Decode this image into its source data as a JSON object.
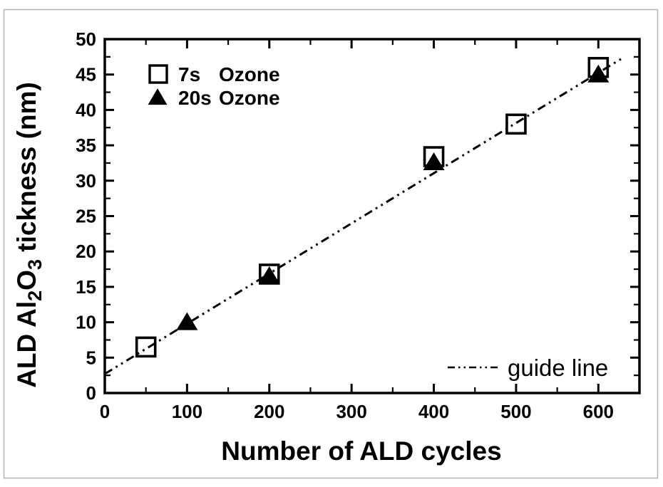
{
  "figure": {
    "background": "#ffffff",
    "border_color": "#b5b5b5",
    "ink_color": "#000000"
  },
  "chart_data": {
    "type": "scatter",
    "title": "",
    "xlabel": "Number of ALD cycles",
    "ylabel_plain": "ALD Al2O3 tickness (nm)",
    "ylabel_parts": [
      {
        "text": "ALD Al",
        "sub": false
      },
      {
        "text": "2",
        "sub": true
      },
      {
        "text": "O",
        "sub": false
      },
      {
        "text": "3",
        "sub": true
      },
      {
        "text": " tickness (nm)",
        "sub": false
      }
    ],
    "xlim": [
      0,
      650
    ],
    "ylim": [
      0,
      50
    ],
    "x_major_ticks": [
      0,
      100,
      200,
      300,
      400,
      500,
      600
    ],
    "y_major_ticks": [
      0,
      5,
      10,
      15,
      20,
      25,
      30,
      35,
      40,
      45,
      50
    ],
    "x_minor_step": 50,
    "y_minor_step": 2.5,
    "grid": false,
    "legend_position": "top-left",
    "series": [
      {
        "name": "7s Ozone",
        "marker": "open-square",
        "points": [
          [
            50,
            6.5
          ],
          [
            200,
            16.8
          ],
          [
            400,
            33.4
          ],
          [
            500,
            38
          ],
          [
            600,
            46
          ]
        ]
      },
      {
        "name": "20s Ozone",
        "marker": "filled-triangle",
        "points": [
          [
            100,
            10
          ],
          [
            200,
            16.5
          ],
          [
            400,
            32.6
          ],
          [
            600,
            45
          ]
        ]
      }
    ],
    "guide_line": {
      "label": "guide line",
      "style": "dash-dot-dot",
      "from": [
        0,
        2.7
      ],
      "to": [
        629,
        47.3
      ]
    },
    "legend_entries": [
      {
        "time": "7s",
        "gas": "Ozone",
        "marker": "open-square"
      },
      {
        "time": "20s",
        "gas": "Ozone",
        "marker": "filled-triangle"
      }
    ]
  }
}
